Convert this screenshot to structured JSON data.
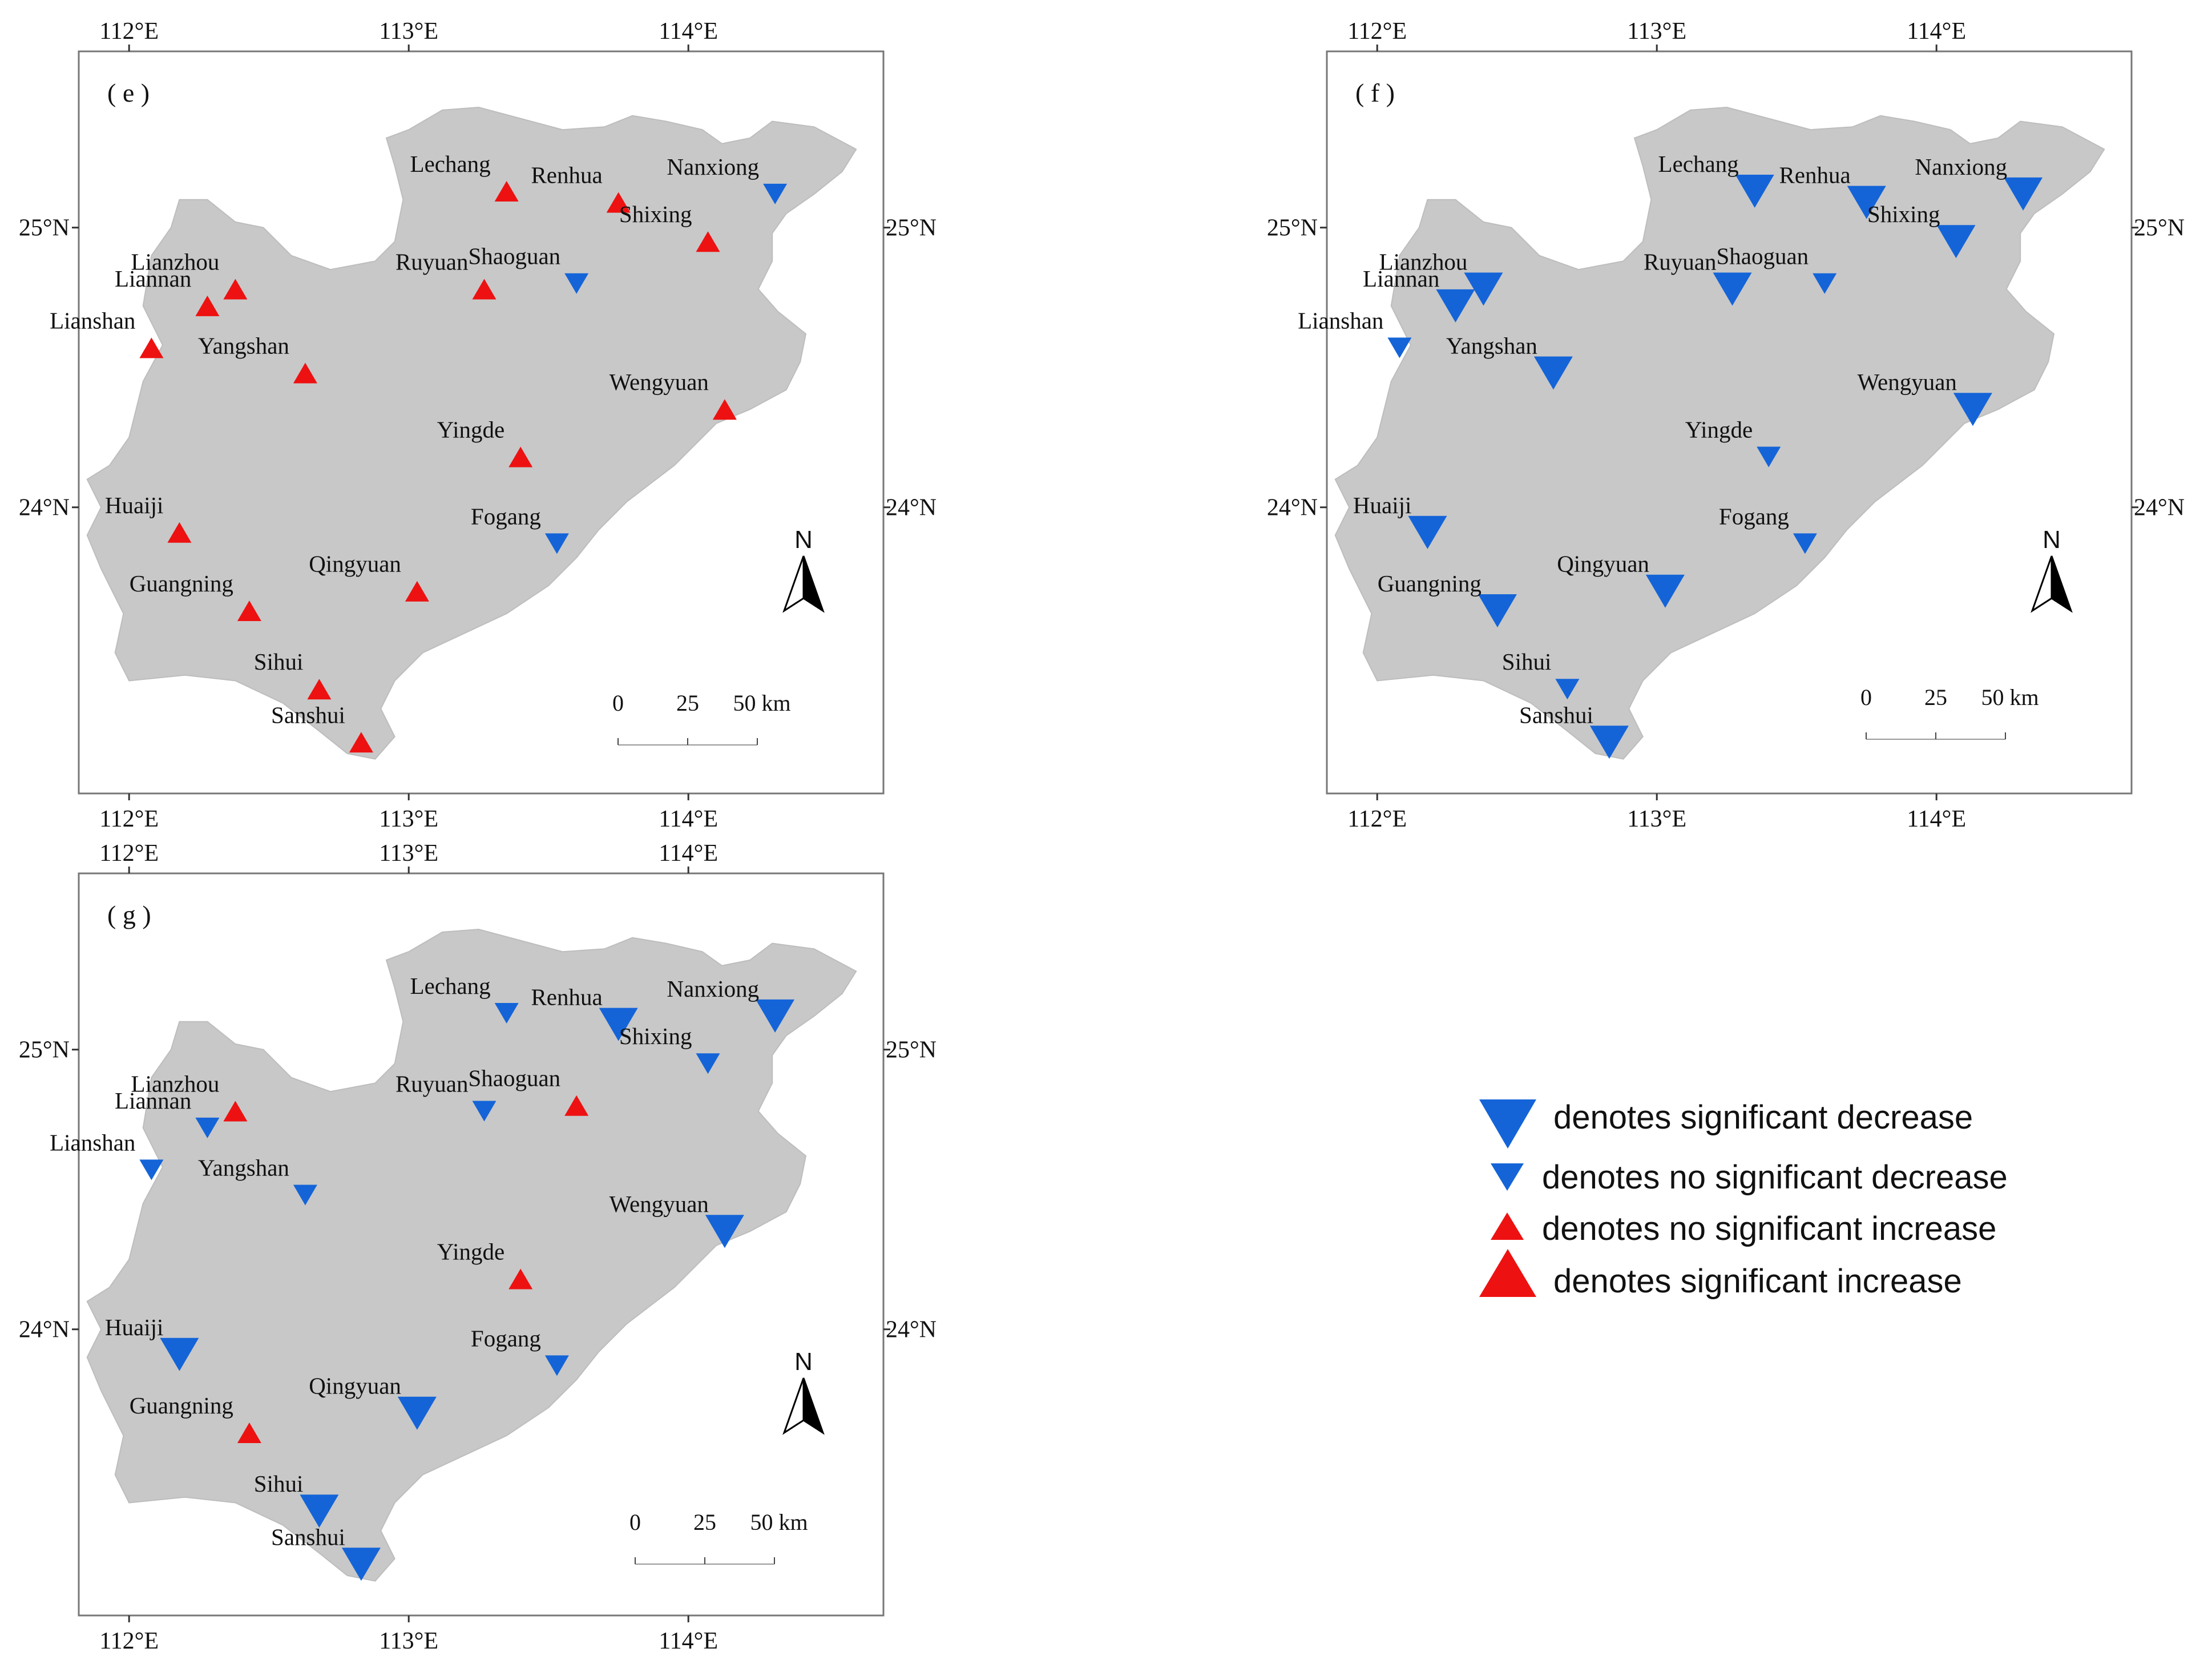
{
  "colors": {
    "decrease": "#1464d8",
    "increase": "#ee1111",
    "region": "#c8c8c8",
    "frame": "#777777"
  },
  "axes": {
    "lon_ticks": [
      "112°E",
      "113°E",
      "114°E"
    ],
    "lat_ticks": [
      "25°N",
      "24°N"
    ],
    "lon_values": [
      112,
      113,
      114
    ],
    "lat_values": [
      25,
      24
    ]
  },
  "scale_bar": {
    "labels": [
      "0",
      "25",
      "50 km"
    ]
  },
  "north_arrow": {
    "label": "N"
  },
  "legend": {
    "items": [
      {
        "text": "denotes significant decrease",
        "icon": "large-down-triangle",
        "trend": "decrease",
        "significant": true
      },
      {
        "text": "denotes no significant decrease",
        "icon": "small-down-triangle",
        "trend": "decrease",
        "significant": false
      },
      {
        "text": "denotes no significant increase",
        "icon": "small-up-triangle",
        "trend": "increase",
        "significant": false
      },
      {
        "text": "denotes significant increase",
        "icon": "large-up-triangle",
        "trend": "increase",
        "significant": true
      }
    ]
  },
  "stations": [
    {
      "name": "Lechang",
      "lon": 113.35,
      "lat": 25.13
    },
    {
      "name": "Renhua",
      "lon": 113.75,
      "lat": 25.09
    },
    {
      "name": "Nanxiong",
      "lon": 114.31,
      "lat": 25.12
    },
    {
      "name": "Lianzhou",
      "lon": 112.38,
      "lat": 24.78
    },
    {
      "name": "Liannan",
      "lon": 112.28,
      "lat": 24.72
    },
    {
      "name": "Lianshan",
      "lon": 112.08,
      "lat": 24.57
    },
    {
      "name": "Ruyuan",
      "lon": 113.27,
      "lat": 24.78
    },
    {
      "name": "Shixing",
      "lon": 114.07,
      "lat": 24.95
    },
    {
      "name": "Shaoguan",
      "lon": 113.6,
      "lat": 24.8
    },
    {
      "name": "Yangshan",
      "lon": 112.63,
      "lat": 24.48
    },
    {
      "name": "Yingde",
      "lon": 113.4,
      "lat": 24.18
    },
    {
      "name": "Wengyuan",
      "lon": 114.13,
      "lat": 24.35
    },
    {
      "name": "Huaiji",
      "lon": 112.18,
      "lat": 23.91
    },
    {
      "name": "Fogang",
      "lon": 113.53,
      "lat": 23.87
    },
    {
      "name": "Guangning",
      "lon": 112.43,
      "lat": 23.63
    },
    {
      "name": "Qingyuan",
      "lon": 113.03,
      "lat": 23.7
    },
    {
      "name": "Sihui",
      "lon": 112.68,
      "lat": 23.35
    },
    {
      "name": "Sanshui",
      "lon": 112.83,
      "lat": 23.16
    }
  ],
  "panels": [
    {
      "letter": "( e )",
      "trends": {
        "Lechang": "no-sig-increase",
        "Renhua": "no-sig-increase",
        "Nanxiong": "no-sig-decrease",
        "Lianzhou": "no-sig-increase",
        "Liannan": "no-sig-increase",
        "Lianshan": "no-sig-increase",
        "Ruyuan": "no-sig-increase",
        "Shixing": "no-sig-increase",
        "Shaoguan": "no-sig-decrease",
        "Yangshan": "no-sig-increase",
        "Yingde": "no-sig-increase",
        "Wengyuan": "no-sig-increase",
        "Huaiji": "no-sig-increase",
        "Fogang": "no-sig-decrease",
        "Guangning": "no-sig-increase",
        "Qingyuan": "no-sig-increase",
        "Sihui": "no-sig-increase",
        "Sanshui": "no-sig-increase"
      }
    },
    {
      "letter": "( f )",
      "trends": {
        "Lechang": "sig-decrease",
        "Renhua": "sig-decrease",
        "Nanxiong": "sig-decrease",
        "Lianzhou": "sig-decrease",
        "Liannan": "sig-decrease",
        "Lianshan": "no-sig-decrease",
        "Ruyuan": "sig-decrease",
        "Shixing": "sig-decrease",
        "Shaoguan": "no-sig-decrease",
        "Yangshan": "sig-decrease",
        "Yingde": "no-sig-decrease",
        "Wengyuan": "sig-decrease",
        "Huaiji": "sig-decrease",
        "Fogang": "no-sig-decrease",
        "Guangning": "sig-decrease",
        "Qingyuan": "sig-decrease",
        "Sihui": "no-sig-decrease",
        "Sanshui": "sig-decrease"
      }
    },
    {
      "letter": "( g )",
      "trends": {
        "Lechang": "no-sig-decrease",
        "Renhua": "sig-decrease",
        "Nanxiong": "sig-decrease",
        "Lianzhou": "no-sig-increase",
        "Liannan": "no-sig-decrease",
        "Lianshan": "no-sig-decrease",
        "Ruyuan": "no-sig-decrease",
        "Shixing": "no-sig-decrease",
        "Shaoguan": "no-sig-increase",
        "Yangshan": "no-sig-decrease",
        "Yingde": "no-sig-increase",
        "Wengyuan": "sig-decrease",
        "Huaiji": "sig-decrease",
        "Fogang": "no-sig-decrease",
        "Guangning": "no-sig-increase",
        "Qingyuan": "sig-decrease",
        "Sihui": "sig-decrease",
        "Sanshui": "sig-decrease"
      }
    }
  ]
}
